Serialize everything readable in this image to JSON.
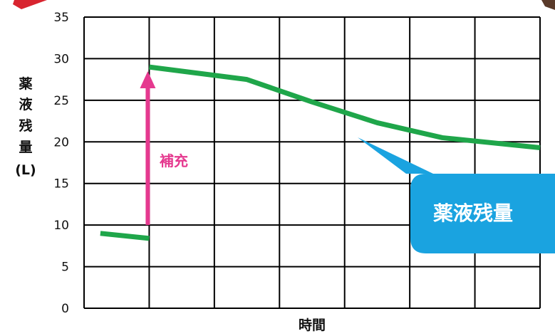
{
  "chart_data": {
    "type": "line",
    "xlabel": "時間",
    "ylabel_chars": [
      "薬",
      "液",
      "残",
      "量",
      "(L)"
    ],
    "ylim": [
      0,
      35
    ],
    "y_ticks": [
      "0",
      "5",
      "10",
      "15",
      "20",
      "25",
      "30",
      "35"
    ],
    "x_divisions": 7,
    "grid": true,
    "series": [
      {
        "color": "#1fa64a",
        "segments": [
          [
            [
              0.25,
              9.0
            ],
            [
              1.0,
              8.4
            ]
          ],
          [
            [
              1.0,
              29.0
            ],
            [
              2.5,
              27.5
            ],
            [
              3.5,
              24.8
            ],
            [
              4.5,
              22.3
            ],
            [
              5.5,
              20.5
            ],
            [
              7.0,
              19.3
            ]
          ]
        ]
      }
    ],
    "annotations": {
      "refill": {
        "label": "補充",
        "color": "#e5398f",
        "x": 1.0,
        "y_from": 10,
        "y_to": 28.5
      },
      "callout": {
        "label": "薬液残量",
        "color": "#1aa3e0"
      }
    },
    "decor_colors": {
      "corner_left": "#d8242f",
      "corner_right": "#5a3a2a"
    }
  }
}
